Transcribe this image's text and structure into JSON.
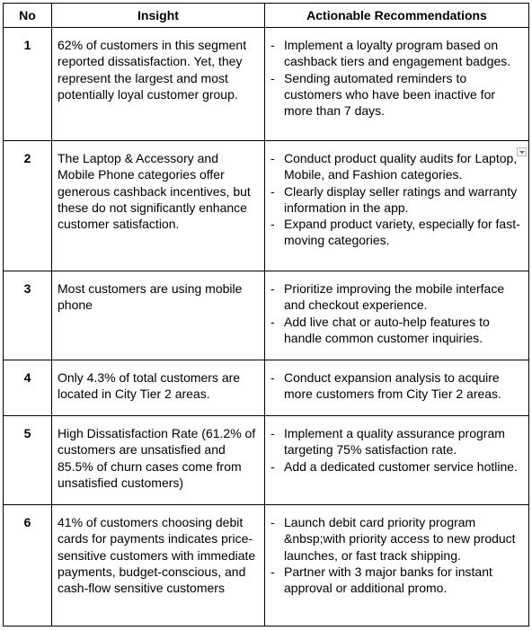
{
  "table": {
    "headers": {
      "no": "No",
      "insight": "Insight",
      "recommendations": "Actionable Recommendations"
    },
    "rows": [
      {
        "no": "1",
        "insight": "62% of customers in this segment reported dissatisfaction. Yet, they represent the largest and most potentially loyal customer group.",
        "recommendations": [
          "Implement a loyalty program based on cashback tiers and engagement badges.",
          "Sending automated reminders to customers who have been inactive for more than 7 days."
        ]
      },
      {
        "no": "2",
        "insight": "The Laptop & Accessory and Mobile Phone categories offer generous cashback incentives, but these do not significantly enhance customer satisfaction.",
        "recommendations": [
          "Conduct product quality audits for Laptop, Mobile, and Fashion categories.",
          " Clearly display seller ratings and warranty information in the app.",
          "Expand product variety, especially for fast-moving categories."
        ]
      },
      {
        "no": "3",
        "insight": "Most customers are using mobile phone",
        "recommendations": [
          "Prioritize improving the mobile interface and checkout experience.",
          "Add live chat or auto-help features to handle common customer inquiries."
        ]
      },
      {
        "no": "4",
        "insight": "Only 4.3% of total customers are located in City Tier 2 areas.",
        "recommendations": [
          "Conduct expansion analysis to acquire more customers from City Tier 2 areas."
        ]
      },
      {
        "no": "5",
        "insight": "High Dissatisfaction Rate (61.2% of customers are unsatisfied and 85.5% of churn cases come from unsatisfied customers)",
        "recommendations": [
          "Implement a quality assurance program targeting 75% satisfaction rate.",
          "Add a dedicated customer service hotline."
        ]
      },
      {
        "no": "6",
        "insight": "41% of customers choosing debit cards for payments indicates price-sensitive customers with immediate payments, budget-conscious, and cash-flow sensitive customers",
        "recommendations": [
          "Launch debit card priority program &nbsp;with priority access to new product launches, or fast track shipping.",
          "Partner with 3 major banks for instant approval or additional promo."
        ]
      }
    ],
    "bullet_marker": "-",
    "dropdown_icon": "chevron-down-icon"
  }
}
